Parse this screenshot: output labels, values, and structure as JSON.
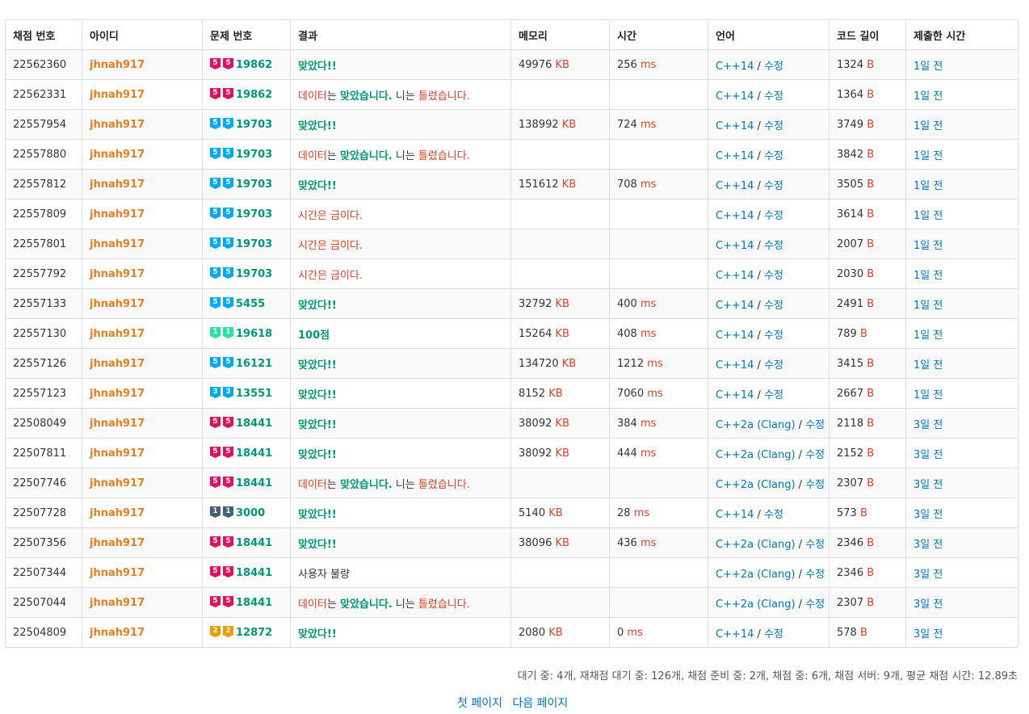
{
  "table": {
    "headers": [
      "채점 번호",
      "아이디",
      "문제 번호",
      "결과",
      "메모리",
      "시간",
      "언어",
      "코드 길이",
      "제출한 시간"
    ],
    "kb_unit": "KB",
    "ms_unit": "ms",
    "b_unit": "B",
    "rows": [
      {
        "id": "22562360",
        "user": "jhnah917",
        "tier": "5",
        "tier_color": "#e0115f",
        "problem": "19862",
        "result_type": "ac",
        "result": "맞았다!!",
        "memory": "49976",
        "time": "256",
        "lang": "C++14",
        "edit": "수정",
        "length": "1324",
        "submitted": "1일 전"
      },
      {
        "id": "22562331",
        "user": "jhnah917",
        "tier": "5",
        "tier_color": "#e0115f",
        "problem": "19862",
        "result_type": "wa_data",
        "result": "",
        "memory": "",
        "time": "",
        "lang": "C++14",
        "edit": "수정",
        "length": "1364",
        "submitted": "1일 전"
      },
      {
        "id": "22557954",
        "user": "jhnah917",
        "tier": "5",
        "tier_color": "#00a9f4",
        "problem": "19703",
        "result_type": "ac",
        "result": "맞았다!!",
        "memory": "138992",
        "time": "724",
        "lang": "C++14",
        "edit": "수정",
        "length": "3749",
        "submitted": "1일 전"
      },
      {
        "id": "22557880",
        "user": "jhnah917",
        "tier": "5",
        "tier_color": "#00a9f4",
        "problem": "19703",
        "result_type": "wa_data",
        "result": "",
        "memory": "",
        "time": "",
        "lang": "C++14",
        "edit": "수정",
        "length": "3842",
        "submitted": "1일 전"
      },
      {
        "id": "22557812",
        "user": "jhnah917",
        "tier": "5",
        "tier_color": "#00a9f4",
        "problem": "19703",
        "result_type": "ac",
        "result": "맞았다!!",
        "memory": "151612",
        "time": "708",
        "lang": "C++14",
        "edit": "수정",
        "length": "3505",
        "submitted": "1일 전"
      },
      {
        "id": "22557809",
        "user": "jhnah917",
        "tier": "5",
        "tier_color": "#00a9f4",
        "problem": "19703",
        "result_type": "tle",
        "result": "시간은 금이다.",
        "memory": "",
        "time": "",
        "lang": "C++14",
        "edit": "수정",
        "length": "3614",
        "submitted": "1일 전"
      },
      {
        "id": "22557801",
        "user": "jhnah917",
        "tier": "5",
        "tier_color": "#00a9f4",
        "problem": "19703",
        "result_type": "tle",
        "result": "시간은 금이다.",
        "memory": "",
        "time": "",
        "lang": "C++14",
        "edit": "수정",
        "length": "2007",
        "submitted": "1일 전"
      },
      {
        "id": "22557792",
        "user": "jhnah917",
        "tier": "5",
        "tier_color": "#00a9f4",
        "problem": "19703",
        "result_type": "tle",
        "result": "시간은 금이다.",
        "memory": "",
        "time": "",
        "lang": "C++14",
        "edit": "수정",
        "length": "2030",
        "submitted": "1일 전"
      },
      {
        "id": "22557133",
        "user": "jhnah917",
        "tier": "5",
        "tier_color": "#00a9f4",
        "problem": "5455",
        "result_type": "ac",
        "result": "맞았다!!",
        "memory": "32792",
        "time": "400",
        "lang": "C++14",
        "edit": "수정",
        "length": "2491",
        "submitted": "1일 전"
      },
      {
        "id": "22557130",
        "user": "jhnah917",
        "tier": "1",
        "tier_color": "#27e2a4",
        "problem": "19618",
        "result_type": "ac",
        "result": "100점",
        "memory": "15264",
        "time": "408",
        "lang": "C++14",
        "edit": "수정",
        "length": "789",
        "submitted": "1일 전"
      },
      {
        "id": "22557126",
        "user": "jhnah917",
        "tier": "5",
        "tier_color": "#00a9f4",
        "problem": "16121",
        "result_type": "ac",
        "result": "맞았다!!",
        "memory": "134720",
        "time": "1212",
        "lang": "C++14",
        "edit": "수정",
        "length": "3415",
        "submitted": "1일 전"
      },
      {
        "id": "22557123",
        "user": "jhnah917",
        "tier": "3",
        "tier_color": "#00a9f4",
        "problem": "13551",
        "result_type": "ac",
        "result": "맞았다!!",
        "memory": "8152",
        "time": "7060",
        "lang": "C++14",
        "edit": "수정",
        "length": "2667",
        "submitted": "1일 전"
      },
      {
        "id": "22508049",
        "user": "jhnah917",
        "tier": "5",
        "tier_color": "#e0115f",
        "problem": "18441",
        "result_type": "ac",
        "result": "맞았다!!",
        "memory": "38092",
        "time": "384",
        "lang": "C++2a (Clang)",
        "edit": "수정",
        "length": "2118",
        "submitted": "3일 전"
      },
      {
        "id": "22507811",
        "user": "jhnah917",
        "tier": "5",
        "tier_color": "#e0115f",
        "problem": "18441",
        "result_type": "ac",
        "result": "맞았다!!",
        "memory": "38092",
        "time": "444",
        "lang": "C++2a (Clang)",
        "edit": "수정",
        "length": "2152",
        "submitted": "3일 전"
      },
      {
        "id": "22507746",
        "user": "jhnah917",
        "tier": "5",
        "tier_color": "#e0115f",
        "problem": "18441",
        "result_type": "wa_data",
        "result": "",
        "memory": "",
        "time": "",
        "lang": "C++2a (Clang)",
        "edit": "수정",
        "length": "2307",
        "submitted": "3일 전"
      },
      {
        "id": "22507728",
        "user": "jhnah917",
        "tier": "1",
        "tier_color": "#435f7a",
        "problem": "3000",
        "result_type": "ac",
        "result": "맞았다!!",
        "memory": "5140",
        "time": "28",
        "lang": "C++14",
        "edit": "수정",
        "length": "573",
        "submitted": "3일 전"
      },
      {
        "id": "22507356",
        "user": "jhnah917",
        "tier": "5",
        "tier_color": "#e0115f",
        "problem": "18441",
        "result_type": "ac",
        "result": "맞았다!!",
        "memory": "38096",
        "time": "436",
        "lang": "C++2a (Clang)",
        "edit": "수정",
        "length": "2346",
        "submitted": "3일 전"
      },
      {
        "id": "22507344",
        "user": "jhnah917",
        "tier": "5",
        "tier_color": "#e0115f",
        "problem": "18441",
        "result_type": "plain",
        "result": "사용자 불량",
        "memory": "",
        "time": "",
        "lang": "C++2a (Clang)",
        "edit": "수정",
        "length": "2346",
        "submitted": "3일 전"
      },
      {
        "id": "22507044",
        "user": "jhnah917",
        "tier": "5",
        "tier_color": "#e0115f",
        "problem": "18441",
        "result_type": "wa_data",
        "result": "",
        "memory": "",
        "time": "",
        "lang": "C++2a (Clang)",
        "edit": "수정",
        "length": "2307",
        "submitted": "3일 전"
      },
      {
        "id": "22504809",
        "user": "jhnah917",
        "tier": "2",
        "tier_color": "#ec9a00",
        "problem": "12872",
        "result_type": "ac",
        "result": "맞았다!!",
        "memory": "2080",
        "time": "0",
        "lang": "C++14",
        "edit": "수정",
        "length": "578",
        "submitted": "3일 전"
      }
    ],
    "wa_data_parts": {
      "p1": "데이터",
      "p2": "는 ",
      "p3": "맞았습니다.",
      "p4": " 니는 ",
      "p5": "틀렸습니다."
    }
  },
  "footer": {
    "stats": "대기 중: 4개, 재채점 대기 중: 126개, 채점 준비 중: 2개, 채점 중: 6개, 채점 서버: 9개, 평균 채점 시간: 12.89초",
    "first_page": "첫 페이지",
    "next_page": "다음 페이지"
  }
}
